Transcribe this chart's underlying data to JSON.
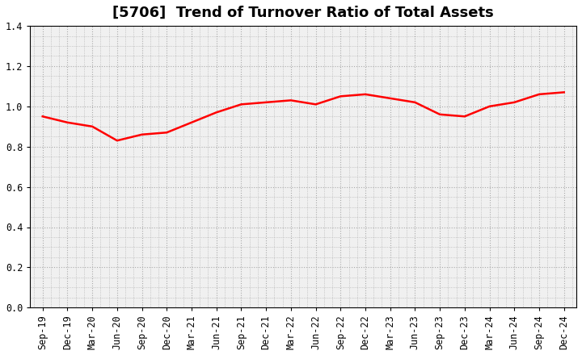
{
  "title": "[5706]  Trend of Turnover Ratio of Total Assets",
  "x_labels": [
    "Sep-19",
    "Dec-19",
    "Mar-20",
    "Jun-20",
    "Sep-20",
    "Dec-20",
    "Mar-21",
    "Jun-21",
    "Sep-21",
    "Dec-21",
    "Mar-22",
    "Jun-22",
    "Sep-22",
    "Dec-22",
    "Mar-23",
    "Jun-23",
    "Sep-23",
    "Dec-23",
    "Mar-24",
    "Jun-24",
    "Sep-24",
    "Dec-24"
  ],
  "y_values": [
    0.95,
    0.92,
    0.9,
    0.83,
    0.86,
    0.87,
    0.92,
    0.97,
    1.01,
    1.02,
    1.03,
    1.01,
    1.05,
    1.06,
    1.04,
    1.02,
    0.96,
    0.95,
    1.0,
    1.02,
    1.06,
    1.07
  ],
  "line_color": "#FF0000",
  "line_width": 1.8,
  "ylim": [
    0.0,
    1.4
  ],
  "yticks": [
    0.0,
    0.2,
    0.4,
    0.6,
    0.8,
    1.0,
    1.2,
    1.4
  ],
  "background_color": "#ffffff",
  "plot_bg_color": "#f0f0f0",
  "grid_color": "#aaaaaa",
  "title_fontsize": 13,
  "tick_fontsize": 8.5
}
